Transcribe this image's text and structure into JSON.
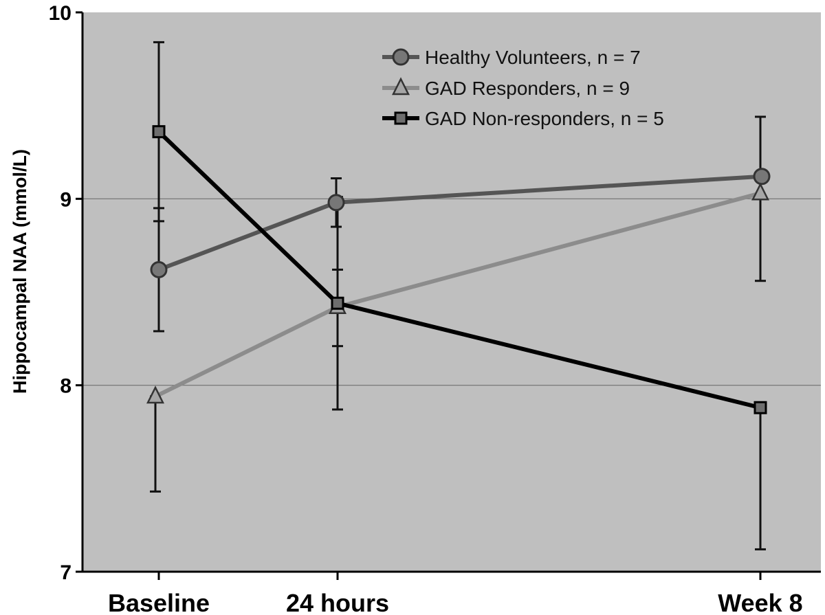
{
  "chart_data": {
    "type": "line",
    "categories": [
      "Baseline",
      "24 hours",
      "Week 8"
    ],
    "ylabel": "Hippocampal NAA (mmol/L)",
    "xlabel": "",
    "ylim": [
      7,
      10
    ],
    "yticks": [
      7,
      8,
      9,
      10
    ],
    "grid": true,
    "legend_position": "top-right",
    "plot_background": "#bfbfbf",
    "series": [
      {
        "name": "Healthy Volunteers, n = 7",
        "values": [
          8.62,
          8.98,
          9.12
        ],
        "error": [
          [
            8.29,
            8.95
          ],
          [
            8.85,
            9.11
          ],
          [
            null,
            null
          ]
        ],
        "marker": "circle",
        "color": "#555555",
        "marker_fill": "#777777"
      },
      {
        "name": "GAD Responders, n = 9",
        "values": [
          7.94,
          8.42,
          9.03
        ],
        "error": [
          [
            7.43,
            7.94
          ],
          [
            8.21,
            8.62
          ],
          [
            8.56,
            9.44
          ]
        ],
        "marker": "triangle",
        "color": "#8c8c8c",
        "marker_fill": "#a6a6a6"
      },
      {
        "name": "GAD Non-responders, n = 5",
        "values": [
          9.36,
          8.44,
          7.88
        ],
        "error": [
          [
            8.88,
            9.84
          ],
          [
            7.87,
            9.01
          ],
          [
            7.12,
            7.88
          ]
        ],
        "marker": "square",
        "color": "#000000",
        "marker_fill": "#6e6e6e"
      }
    ]
  }
}
